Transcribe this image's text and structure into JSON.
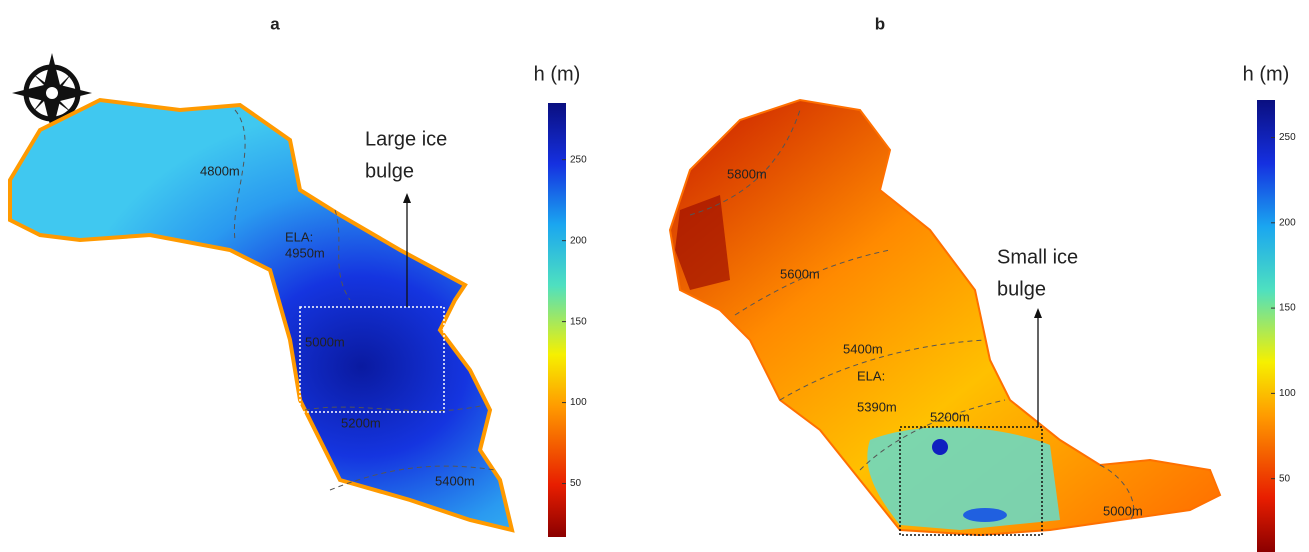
{
  "panels": [
    {
      "label": "a",
      "colorbar": {
        "title": "h (m)",
        "range": [
          17,
          285
        ],
        "ticks": [
          50,
          100,
          150,
          200,
          250
        ]
      },
      "annotation": [
        "Large ice",
        "bulge"
      ],
      "contour_labels": [
        "4800m",
        "ELA:",
        "4950m",
        "5000m",
        "5200m",
        "5400m"
      ]
    },
    {
      "label": "b",
      "colorbar": {
        "title": "h (m)",
        "range": [
          7,
          272
        ],
        "ticks": [
          50,
          100,
          150,
          200,
          250
        ]
      },
      "annotation": [
        "Small ice",
        "bulge"
      ],
      "contour_labels": [
        "5800m",
        "5600m",
        "5400m",
        "ELA:",
        "5390m",
        "5200m",
        "5000m"
      ]
    }
  ]
}
